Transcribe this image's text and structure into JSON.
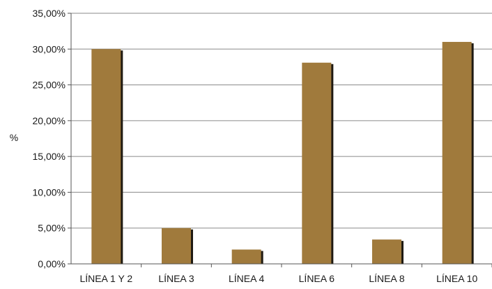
{
  "chart_data": {
    "type": "bar",
    "title": "",
    "xlabel": "",
    "ylabel": "%",
    "ylim": [
      0,
      35
    ],
    "yticks": [
      {
        "value": 0,
        "label": "0,00%"
      },
      {
        "value": 5,
        "label": "5,00%"
      },
      {
        "value": 10,
        "label": "10,00%"
      },
      {
        "value": 15,
        "label": "15,00%"
      },
      {
        "value": 20,
        "label": "20,00%"
      },
      {
        "value": 25,
        "label": "25,00%"
      },
      {
        "value": 30,
        "label": "30,00%"
      },
      {
        "value": 35,
        "label": "35,00%"
      }
    ],
    "categories": [
      "LÍNEA 1 Y 2",
      "LÍNEA 3",
      "LÍNEA 4",
      "LÍNEA 6",
      "LÍNEA 8",
      "LÍNEA 10"
    ],
    "values": [
      30.0,
      5.0,
      2.0,
      28.1,
      3.4,
      31.0
    ],
    "grid": true,
    "legend": "none",
    "colors": {
      "bar": "#a07a3c",
      "bar_shadow": "#1f1a12",
      "grid": "#8a8a8a",
      "axis": "#555555"
    }
  }
}
